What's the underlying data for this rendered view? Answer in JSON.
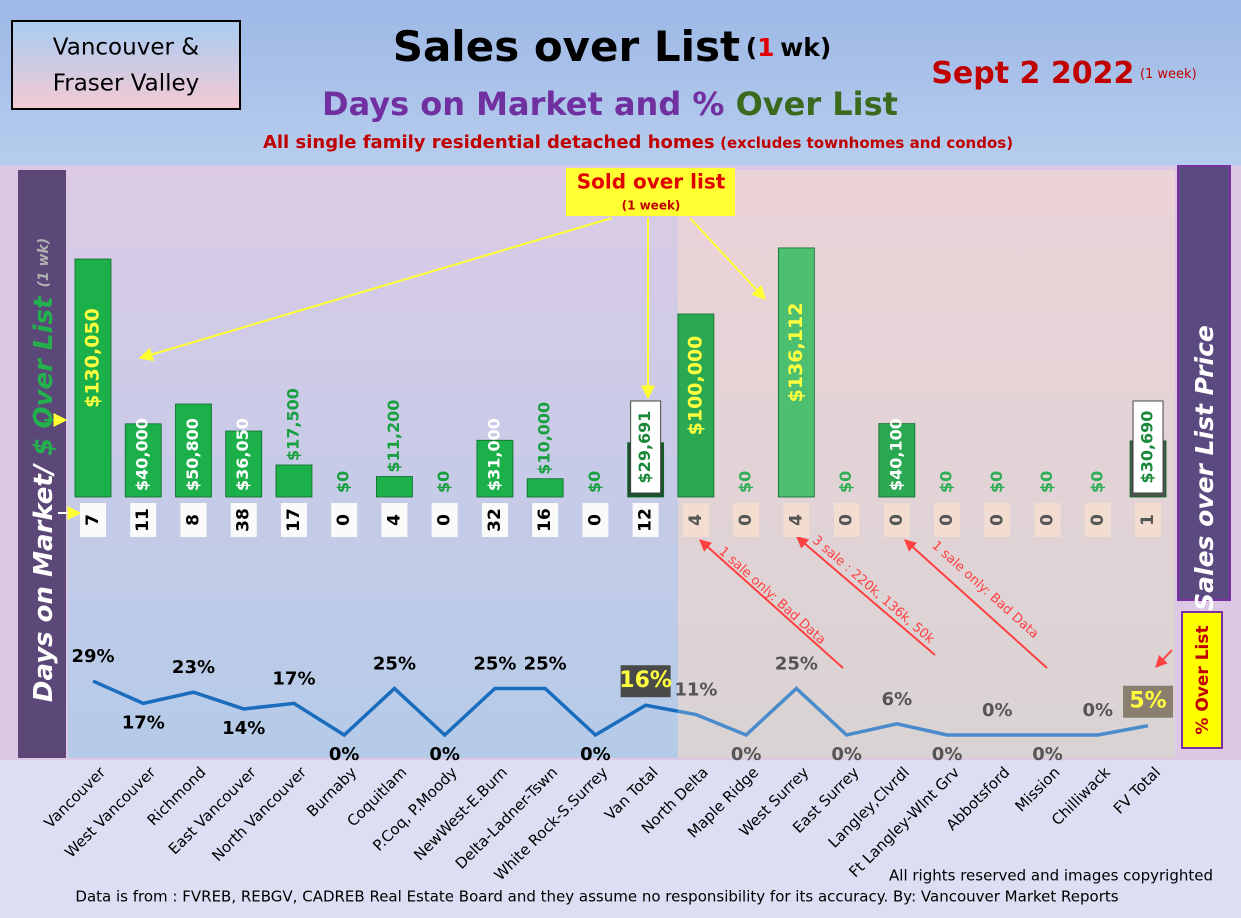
{
  "header": {
    "region_lines": [
      "Vancouver &",
      "Fraser Valley"
    ],
    "title": "Sales over List",
    "title_open": "(",
    "title_number": "1",
    "title_close": "wk)",
    "date": "Sept 2  2022",
    "date_note": "(1 week)",
    "subtitle_a": "Days on Market and %",
    "subtitle_b": "Over List",
    "scope": "All single family residential detached homes",
    "scope_note": "(excludes townhomes and condos)"
  },
  "chart_data": {
    "type": "bar",
    "left_label_a": "Days on Market/",
    "left_label_b": "$ Over List",
    "left_label_c": "(1 wk)",
    "right_label": "Sales over List Price",
    "right_box_label": "% Over List",
    "callout_title": "Sold over list",
    "callout_note": "(1 week)",
    "categories": [
      "Vancouver",
      "West Vancouver",
      "Richmond",
      "East Vancouver",
      "North Vancouver",
      "Burnaby",
      "Coquitlam",
      "P.Coq, P.Moody",
      "NewWest-E.Burn",
      "Delta-Ladner-Tswn",
      "White Rock-S.Surrey",
      "Van Total",
      "North Delta",
      "Maple Ridge",
      "West Surrey",
      "East Surrey",
      "Langley,Clvrdl",
      "Ft Langley-Wlnt Grv",
      "Abbotsford",
      "Mission",
      "Chilliwack",
      "FV Total"
    ],
    "sold_over_list": {
      "values": [
        130050,
        40000,
        50800,
        36050,
        17500,
        0,
        11200,
        0,
        31000,
        10000,
        0,
        29691,
        100000,
        0,
        136112,
        0,
        40100,
        0,
        0,
        0,
        0,
        30690
      ],
      "value_labels": [
        "$130,050",
        "$40,000",
        "$50,800",
        "$36,050",
        "$17,500",
        "$0",
        "$11,200",
        "$0",
        "$31,000",
        "$10,000",
        "$0",
        "$29,691",
        "$100,000",
        "$0",
        "$136,112",
        "$0",
        "$40,100",
        "$0",
        "$0",
        "$0",
        "$0",
        "$30,690"
      ],
      "colors": [
        "#1cb04a",
        "#1cb04a",
        "#1cb04a",
        "#1cb04a",
        "#1cb04a",
        "#1cb04a",
        "#1cb04a",
        "#1cb04a",
        "#1cb04a",
        "#1cb04a",
        "#1cb04a",
        "#1d4f2a",
        "#2ba852",
        "#2ba852",
        "#4cbf70",
        "#2ba852",
        "#2ba852",
        "#2ba852",
        "#2ba852",
        "#2ba852",
        "#2ba852",
        "#46584a"
      ]
    },
    "days_on_market": {
      "values": [
        7,
        11,
        8,
        38,
        17,
        0,
        4,
        0,
        32,
        16,
        0,
        12,
        4,
        0,
        4,
        0,
        0,
        0,
        0,
        0,
        0,
        1
      ]
    },
    "percent_over_list": {
      "values": [
        29,
        17,
        23,
        14,
        17,
        0,
        25,
        0,
        25,
        25,
        0,
        16,
        11,
        0,
        25,
        0,
        6,
        0,
        0,
        0,
        0,
        5
      ],
      "value_labels": [
        "29%",
        "17%",
        "23%",
        "14%",
        "17%",
        "0%",
        "25%",
        "0%",
        "25%",
        "25%",
        "0%",
        "16%",
        "11%",
        "0%",
        "25%",
        "0%",
        "6%",
        "0%",
        "0%",
        "0%",
        "0%",
        "5%"
      ],
      "color": "#1a6cbd",
      "color_fv": "#4a8ccb"
    },
    "annotations": [
      "1 sale only: Bad Data",
      "3 sale : 220k, 136k, 50k",
      "1 sale only: Bad Data"
    ]
  },
  "footer": {
    "rights": "All rights reserved and  images copyrighted",
    "source": "Data is from : FVREB, REBGV, CADREB Real Estate Board and they assume no responsibility for its accuracy. By: Vancouver Market Reports"
  }
}
